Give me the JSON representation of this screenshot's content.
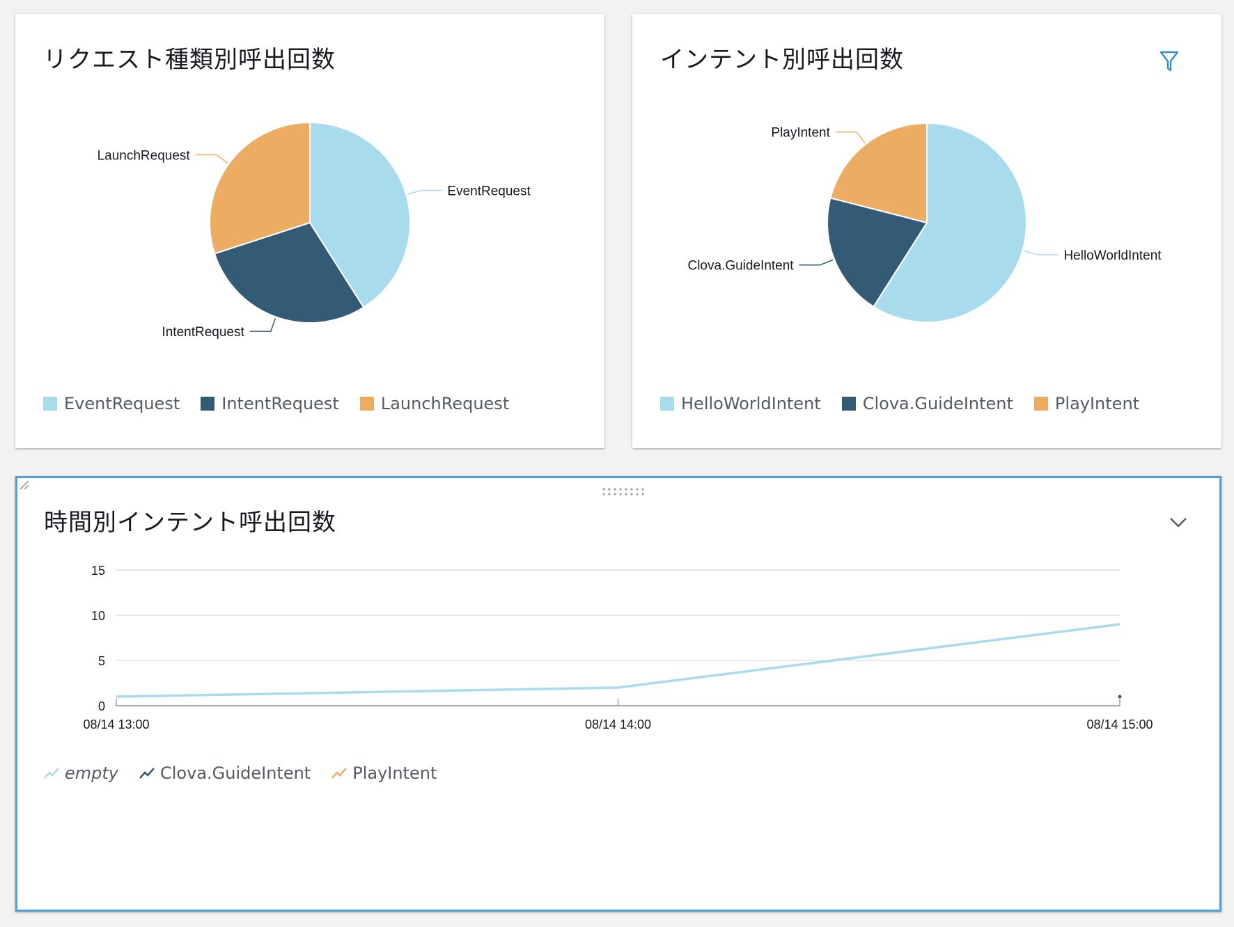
{
  "colors": {
    "light_blue": "#a8dbec",
    "dark_blue": "#335b75",
    "orange": "#ecad63",
    "accent_border": "#4fa1d3",
    "filter_icon": "#2f8fd1"
  },
  "panels": {
    "request": {
      "title": "リクエスト種類別呼出回数",
      "chart_data": {
        "type": "pie",
        "slices": [
          {
            "label": "EventRequest",
            "value": 41,
            "color": "#a8dbec"
          },
          {
            "label": "IntentRequest",
            "value": 29,
            "color": "#335b75"
          },
          {
            "label": "LaunchRequest",
            "value": 30,
            "color": "#ecad63"
          }
        ],
        "legend": [
          "EventRequest",
          "IntentRequest",
          "LaunchRequest"
        ],
        "legend_position": "bottom-left"
      }
    },
    "intent": {
      "title": "インテント別呼出回数",
      "filter_icon": "filter-icon",
      "chart_data": {
        "type": "pie",
        "slices": [
          {
            "label": "HelloWorldIntent",
            "value": 59,
            "color": "#a8dbec"
          },
          {
            "label": "Clova.GuideIntent",
            "value": 20,
            "color": "#335b75"
          },
          {
            "label": "PlayIntent",
            "value": 21,
            "color": "#ecad63"
          }
        ],
        "legend": [
          "HelloWorldIntent",
          "Clova.GuideIntent",
          "PlayIntent"
        ],
        "legend_position": "bottom-left"
      }
    },
    "timeline": {
      "title": "時間別インテント呼出回数",
      "toggle_icon": "chevron-down-icon",
      "chart_data": {
        "type": "line",
        "x": [
          "08/14 13:00",
          "08/14 14:00",
          "08/14 15:00"
        ],
        "ylim": [
          0,
          15
        ],
        "yticks": [
          "0",
          "5",
          "10",
          "15"
        ],
        "grid": true,
        "legend_position": "bottom-left",
        "series": [
          {
            "name": "empty",
            "values": [
              1,
              2,
              9
            ],
            "color": "#a8dbec"
          },
          {
            "name": "Clova.GuideIntent",
            "values": [
              null,
              null,
              1
            ],
            "color": "#335b75"
          },
          {
            "name": "PlayIntent",
            "values": [
              null,
              null,
              null
            ],
            "color": "#ecad63"
          }
        ]
      }
    }
  }
}
